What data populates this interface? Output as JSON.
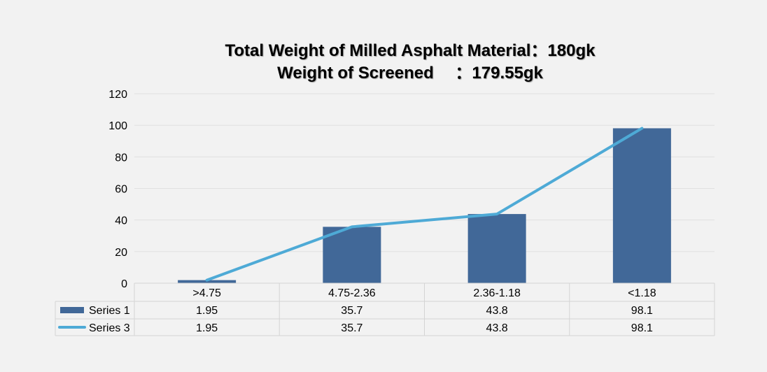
{
  "chart_data": {
    "type": "bar+line",
    "title_lines": [
      "Total Weight of Milled Asphalt Material：180gk",
      "Weight of Screened　 ：179.55gk"
    ],
    "categories": [
      ">4.75",
      "4.75-2.36",
      "2.36-1.18",
      "<1.18"
    ],
    "series": [
      {
        "name": "Series 1",
        "type": "bar",
        "color": "#416898",
        "values": [
          1.95,
          35.7,
          43.8,
          98.1
        ]
      },
      {
        "name": "Series 3",
        "type": "line",
        "color": "#4eaad6",
        "values": [
          1.95,
          35.7,
          43.8,
          98.1
        ]
      }
    ],
    "ylim": [
      0,
      120
    ],
    "yticks": [
      0,
      20,
      40,
      60,
      80,
      100,
      120
    ],
    "grid": true,
    "legend": "data-table",
    "data_table": true
  }
}
